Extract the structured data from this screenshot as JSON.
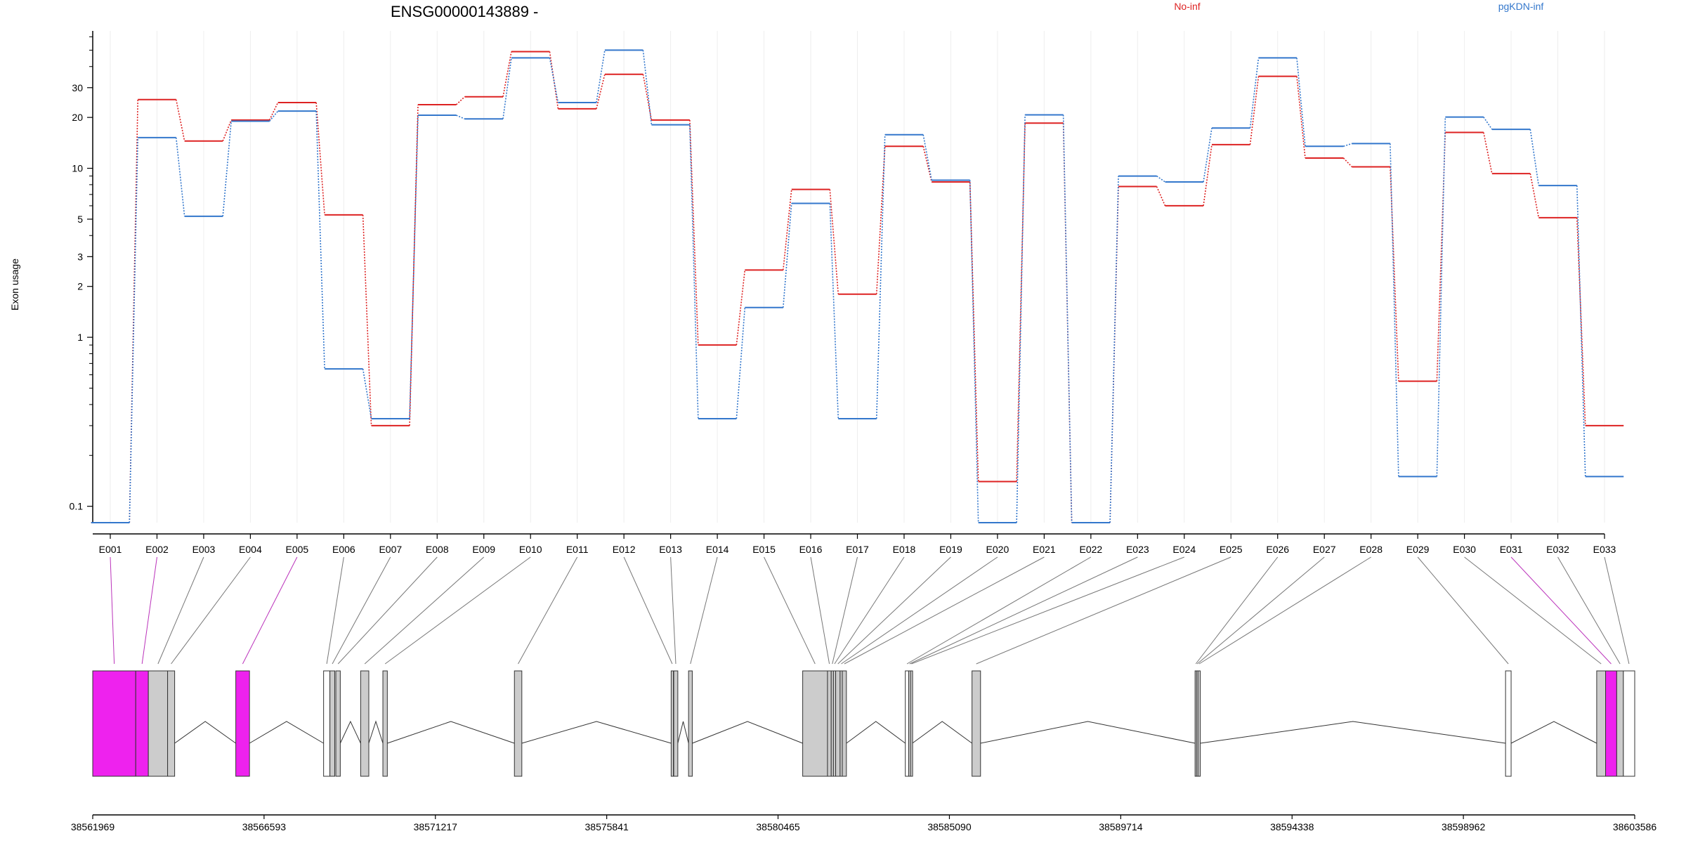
{
  "chart_data": {
    "type": "line",
    "title": "ENSG00000143889 -",
    "ylabel": "Exon usage",
    "xlabel": "",
    "yscale": "log",
    "ylim": [
      0.08,
      65
    ],
    "yticks": [
      0.1,
      1,
      2,
      3,
      5,
      10,
      20,
      30
    ],
    "ytick_labels": [
      "0.1",
      "1",
      "2",
      "3",
      "5",
      "10",
      "20",
      "30"
    ],
    "grid": "vertical",
    "legend_position": "top-right",
    "categories": [
      "E001",
      "E002",
      "E003",
      "E004",
      "E005",
      "E006",
      "E007",
      "E008",
      "E009",
      "E010",
      "E011",
      "E012",
      "E013",
      "E014",
      "E015",
      "E016",
      "E017",
      "E018",
      "E019",
      "E020",
      "E021",
      "E022",
      "E023",
      "E024",
      "E025",
      "E026",
      "E027",
      "E028",
      "E029",
      "E030",
      "E031",
      "E032",
      "E033"
    ],
    "series": [
      {
        "name": "No-inf",
        "color": "#dd2222",
        "values": [
          0.08,
          25.5,
          14.5,
          19.3,
          24.5,
          5.3,
          0.3,
          23.8,
          26.5,
          49,
          22.5,
          36,
          19.3,
          0.9,
          2.5,
          7.5,
          1.8,
          13.5,
          8.3,
          0.14,
          18.5,
          0.08,
          7.8,
          6.0,
          13.8,
          35,
          11.5,
          10.2,
          0.55,
          16.3,
          9.3,
          5.1,
          0.3
        ]
      },
      {
        "name": "pgKDN-inf",
        "color": "#3377cc",
        "values": [
          0.08,
          15.2,
          5.2,
          19.0,
          21.8,
          0.65,
          0.33,
          20.6,
          19.6,
          45,
          24.5,
          50,
          18.1,
          0.33,
          1.5,
          6.2,
          0.33,
          15.8,
          8.5,
          0.08,
          20.7,
          0.08,
          9.0,
          8.3,
          17.3,
          45,
          13.5,
          14.0,
          0.15,
          20.1,
          17.0,
          7.9,
          0.15
        ]
      }
    ],
    "gene_model": {
      "xticks": [
        38561969,
        38566593,
        38571217,
        38575841,
        38580465,
        38585090,
        38589714,
        38594338,
        38598962,
        38603586
      ],
      "xtick_labels": [
        "38561969",
        "38566593",
        "38571217",
        "38575841",
        "38580465",
        "38585090",
        "38589714",
        "38594338",
        "38598962",
        "38603586"
      ],
      "xlim": [
        38561969,
        38603586
      ],
      "colors": {
        "significant": "#ee22ee",
        "tested": "#cccccc",
        "untested": "#ffffff"
      },
      "exons": [
        {
          "id": "E001",
          "start": 38561969,
          "end": 38563130,
          "state": "significant"
        },
        {
          "id": "E002",
          "start": 38563130,
          "end": 38563470,
          "state": "significant"
        },
        {
          "id": "E003",
          "start": 38563470,
          "end": 38563990,
          "state": "tested"
        },
        {
          "id": "E004",
          "start": 38563990,
          "end": 38564180,
          "state": "tested"
        },
        {
          "id": "E005",
          "start": 38565830,
          "end": 38566200,
          "state": "significant"
        },
        {
          "id": "E006",
          "start": 38568200,
          "end": 38568370,
          "state": "untested"
        },
        {
          "id": "E007",
          "start": 38568370,
          "end": 38568500,
          "state": "tested"
        },
        {
          "id": "E008",
          "start": 38568530,
          "end": 38568650,
          "state": "tested"
        },
        {
          "id": "E009",
          "start": 38569200,
          "end": 38569420,
          "state": "tested"
        },
        {
          "id": "E010",
          "start": 38569800,
          "end": 38569920,
          "state": "tested"
        },
        {
          "id": "E011",
          "start": 38573350,
          "end": 38573550,
          "state": "tested"
        },
        {
          "id": "E012",
          "start": 38577580,
          "end": 38577640,
          "state": "tested"
        },
        {
          "id": "E013",
          "start": 38577650,
          "end": 38577760,
          "state": "tested"
        },
        {
          "id": "E014",
          "start": 38578050,
          "end": 38578150,
          "state": "tested"
        },
        {
          "id": "E015",
          "start": 38581130,
          "end": 38581800,
          "state": "tested"
        },
        {
          "id": "E016",
          "start": 38581800,
          "end": 38581900,
          "state": "tested"
        },
        {
          "id": "E017",
          "start": 38581900,
          "end": 38581960,
          "state": "tested"
        },
        {
          "id": "E018",
          "start": 38581960,
          "end": 38582020,
          "state": "tested"
        },
        {
          "id": "E019",
          "start": 38582020,
          "end": 38582140,
          "state": "tested"
        },
        {
          "id": "E020",
          "start": 38582140,
          "end": 38582200,
          "state": "tested"
        },
        {
          "id": "E021",
          "start": 38582200,
          "end": 38582310,
          "state": "tested"
        },
        {
          "id": "E022",
          "start": 38583900,
          "end": 38583990,
          "state": "untested"
        },
        {
          "id": "E023",
          "start": 38583990,
          "end": 38584040,
          "state": "tested"
        },
        {
          "id": "E024",
          "start": 38584040,
          "end": 38584090,
          "state": "tested"
        },
        {
          "id": "E025",
          "start": 38585700,
          "end": 38585930,
          "state": "tested"
        },
        {
          "id": "E026",
          "start": 38591720,
          "end": 38591760,
          "state": "tested"
        },
        {
          "id": "E027",
          "start": 38591760,
          "end": 38591800,
          "state": "tested"
        },
        {
          "id": "E028",
          "start": 38591800,
          "end": 38591860,
          "state": "tested"
        },
        {
          "id": "E029",
          "start": 38600100,
          "end": 38600250,
          "state": "untested"
        },
        {
          "id": "E030",
          "start": 38602560,
          "end": 38602800,
          "state": "tested"
        },
        {
          "id": "E031",
          "start": 38602800,
          "end": 38603100,
          "state": "significant"
        },
        {
          "id": "E032",
          "start": 38603100,
          "end": 38603280,
          "state": "tested"
        },
        {
          "id": "E033",
          "start": 38603280,
          "end": 38603586,
          "state": "untested"
        }
      ]
    }
  }
}
